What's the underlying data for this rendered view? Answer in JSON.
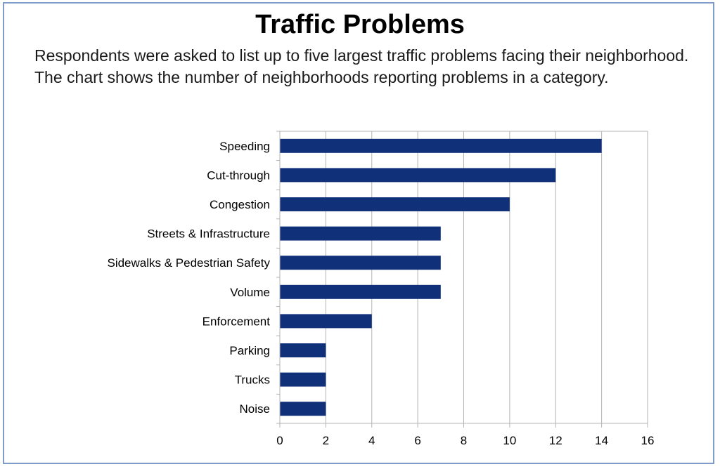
{
  "title": "Traffic Problems",
  "subtitle": "Respondents were asked to list up to five largest traffic problems facing their neighborhood. The chart shows the number of neighborhoods reporting problems in a category.",
  "colors": {
    "bar": "#10317a",
    "grid": "#b3b3b3",
    "frame": "#7f9cc8"
  },
  "chart_data": {
    "type": "bar",
    "orientation": "horizontal",
    "categories": [
      "Speeding",
      "Cut-through",
      "Congestion",
      "Streets & Infrastructure",
      "Sidewalks & Pedestrian Safety",
      "Volume",
      "Enforcement",
      "Parking",
      "Trucks",
      "Noise"
    ],
    "values": [
      14,
      12,
      10,
      7,
      7,
      7,
      4,
      2,
      2,
      2
    ],
    "xlim": [
      0,
      16
    ],
    "xticks": [
      0,
      2,
      4,
      6,
      8,
      10,
      12,
      14,
      16
    ],
    "grid": true,
    "legend": "none",
    "xlabel": "",
    "ylabel": ""
  }
}
